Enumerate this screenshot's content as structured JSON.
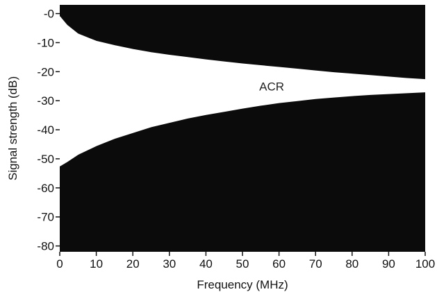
{
  "chart_data": {
    "type": "area",
    "xlabel": "Frequency (MHz)",
    "ylabel": "Signal strength (dB)",
    "xlim": [
      0,
      100
    ],
    "ylim": [
      -82,
      3
    ],
    "xticks": [
      "0",
      "10",
      "20",
      "30",
      "40",
      "50",
      "60",
      "70",
      "80",
      "90",
      "100"
    ],
    "yticks": [
      "-0",
      "-10",
      "-20",
      "-30",
      "-40",
      "-50",
      "-60",
      "-70",
      "-80"
    ],
    "grid": false,
    "legend": "none",
    "series": [
      {
        "x": [
          0,
          2,
          5,
          10,
          15,
          20,
          25,
          30,
          35,
          40,
          45,
          50,
          55,
          60,
          65,
          70,
          75,
          80,
          85,
          90,
          95,
          100
        ],
        "values": [
          -1,
          -4,
          -7,
          -9.5,
          -11,
          -12.3,
          -13.4,
          -14.3,
          -15.1,
          -15.9,
          -16.6,
          -17.3,
          -17.9,
          -18.5,
          -19.1,
          -19.7,
          -20.3,
          -20.8,
          -21.3,
          -21.8,
          -22.3,
          -22.7
        ]
      },
      {
        "x": [
          0,
          2,
          5,
          10,
          15,
          20,
          25,
          30,
          35,
          40,
          45,
          50,
          55,
          60,
          65,
          70,
          75,
          80,
          85,
          90,
          95,
          100
        ],
        "values": [
          -52.5,
          -51,
          -48.5,
          -45.5,
          -43,
          -41,
          -39,
          -37.5,
          -36,
          -34.8,
          -33.7,
          -32.6,
          -31.6,
          -30.7,
          -30,
          -29.3,
          -28.8,
          -28.3,
          -27.9,
          -27.6,
          -27.3,
          -27
        ]
      }
    ],
    "annotations": [
      {
        "text": "ACR",
        "x": 58,
        "y": -25
      }
    ],
    "colors": {
      "fill": "#0b0b0b",
      "band": "#ffffff",
      "text": "#111111",
      "annotation": "#222222"
    }
  }
}
